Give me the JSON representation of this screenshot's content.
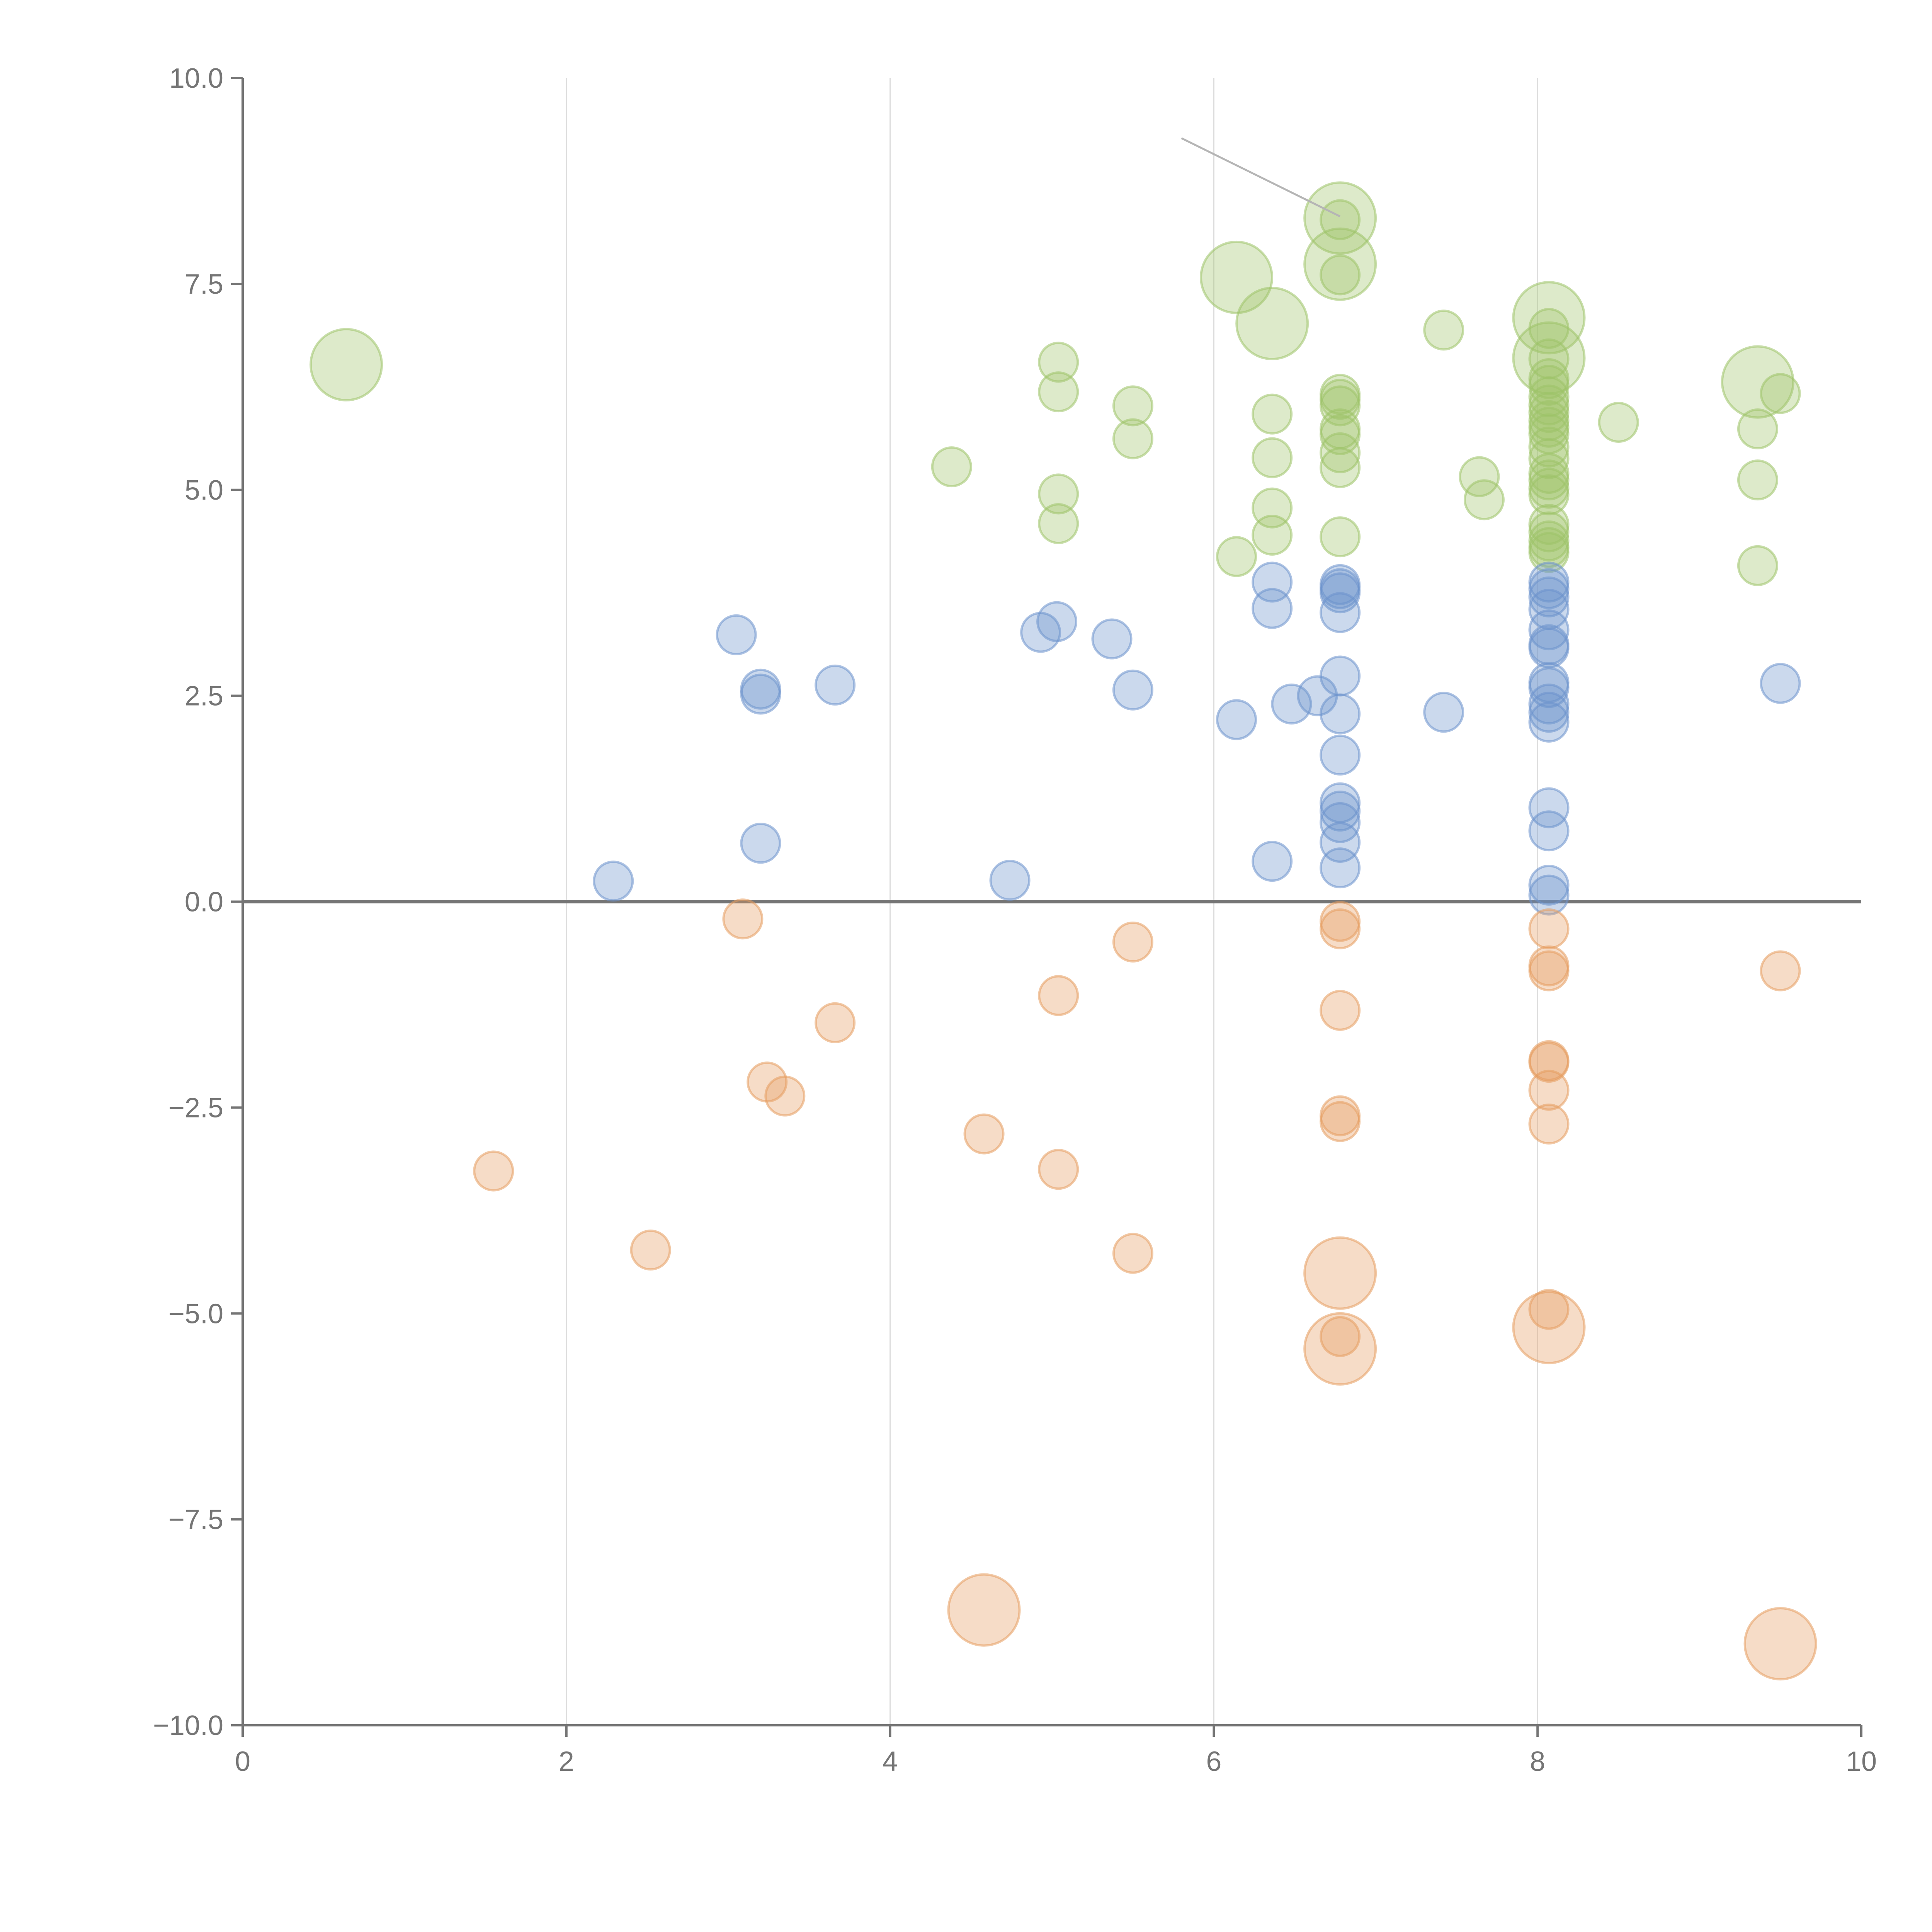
{
  "chart_data": {
    "type": "scatter",
    "title": "",
    "xlabel": "",
    "ylabel": "",
    "xlim": [
      0,
      10
    ],
    "ylim": [
      -10,
      10
    ],
    "grid": {
      "x": true,
      "y": false
    },
    "zero_line": true,
    "x_ticks": [
      0,
      2,
      4,
      6,
      8,
      10
    ],
    "x_tick_labels": [
      "0",
      "2",
      "4",
      "6",
      "8",
      "10"
    ],
    "y_ticks": [
      10,
      7.5,
      5,
      2.5,
      0,
      -2.5,
      -5,
      -7.5,
      -10
    ],
    "y_tick_labels": [
      "10.0",
      "7.5",
      "5.0",
      "2.5",
      "0.0",
      "−2.5",
      "−5.0",
      "−7.5",
      "−10.0"
    ],
    "colors": {
      "green": "#9dc267",
      "blue": "#6b92cc",
      "orange": "#e69c5e",
      "axis": "#757575",
      "grid": "#dddddd"
    },
    "series": [
      {
        "name": "green",
        "color": "#9dc267",
        "points": [
          [
            0.64,
            6.52,
            2
          ],
          [
            4.38,
            5.28,
            1
          ],
          [
            5.04,
            6.55,
            1
          ],
          [
            5.04,
            6.19,
            1
          ],
          [
            5.04,
            4.95,
            1
          ],
          [
            5.04,
            4.59,
            1
          ],
          [
            5.5,
            6.02,
            1
          ],
          [
            5.5,
            5.62,
            1
          ],
          [
            6.14,
            4.19,
            1
          ],
          [
            6.14,
            7.58,
            2
          ],
          [
            6.36,
            5.92,
            1
          ],
          [
            6.36,
            5.39,
            1
          ],
          [
            6.36,
            4.78,
            1
          ],
          [
            6.36,
            4.45,
            1
          ],
          [
            6.36,
            7.02,
            2
          ],
          [
            6.78,
            8.3,
            2
          ],
          [
            6.78,
            7.74,
            2
          ],
          [
            6.78,
            8.28,
            1
          ],
          [
            6.78,
            7.61,
            1
          ],
          [
            6.78,
            6.16,
            1
          ],
          [
            6.78,
            6.1,
            1
          ],
          [
            6.78,
            6.02,
            1
          ],
          [
            6.78,
            5.74,
            1
          ],
          [
            6.78,
            5.67,
            1
          ],
          [
            6.78,
            5.45,
            1
          ],
          [
            6.78,
            5.27,
            1
          ],
          [
            6.78,
            4.43,
            1
          ],
          [
            7.42,
            6.94,
            1
          ],
          [
            7.64,
            5.16,
            1
          ],
          [
            7.67,
            4.88,
            1
          ],
          [
            8.07,
            7.09,
            2
          ],
          [
            8.07,
            6.6,
            2
          ],
          [
            8.07,
            6.96,
            1
          ],
          [
            8.07,
            6.59,
            1
          ],
          [
            8.07,
            6.35,
            1
          ],
          [
            8.07,
            6.27,
            1
          ],
          [
            8.07,
            6.13,
            1
          ],
          [
            8.07,
            6.03,
            1
          ],
          [
            8.07,
            5.94,
            1
          ],
          [
            8.07,
            5.84,
            1
          ],
          [
            8.07,
            5.76,
            1
          ],
          [
            8.07,
            5.68,
            1
          ],
          [
            8.07,
            5.52,
            1
          ],
          [
            8.07,
            5.38,
            1
          ],
          [
            8.07,
            5.2,
            1
          ],
          [
            8.07,
            5.12,
            1
          ],
          [
            8.07,
            5.02,
            1
          ],
          [
            8.07,
            4.94,
            1
          ],
          [
            8.07,
            4.58,
            1
          ],
          [
            8.07,
            4.49,
            1
          ],
          [
            8.07,
            4.38,
            1
          ],
          [
            8.07,
            4.3,
            1
          ],
          [
            8.07,
            4.24,
            1
          ],
          [
            8.5,
            5.82,
            1
          ],
          [
            9.36,
            6.31,
            2
          ],
          [
            9.36,
            5.74,
            1
          ],
          [
            9.36,
            5.12,
            1
          ],
          [
            9.36,
            4.08,
            1
          ],
          [
            9.5,
            6.17,
            1
          ]
        ]
      },
      {
        "name": "blue",
        "color": "#6b92cc",
        "points": [
          [
            2.29,
            0.25,
            1
          ],
          [
            3.05,
            3.24,
            1
          ],
          [
            3.2,
            2.58,
            1
          ],
          [
            3.2,
            2.52,
            1
          ],
          [
            3.2,
            0.71,
            1
          ],
          [
            3.66,
            2.63,
            1
          ],
          [
            4.74,
            0.26,
            1
          ],
          [
            4.93,
            3.27,
            1
          ],
          [
            5.03,
            3.4,
            1
          ],
          [
            5.37,
            3.19,
            1
          ],
          [
            5.5,
            2.57,
            1
          ],
          [
            6.14,
            2.21,
            1
          ],
          [
            6.36,
            3.88,
            1
          ],
          [
            6.36,
            3.56,
            1
          ],
          [
            6.36,
            0.49,
            1
          ],
          [
            6.48,
            2.4,
            1
          ],
          [
            6.64,
            2.5,
            1
          ],
          [
            6.78,
            3.85,
            1
          ],
          [
            6.78,
            3.8,
            1
          ],
          [
            6.78,
            3.75,
            1
          ],
          [
            6.78,
            3.51,
            1
          ],
          [
            6.78,
            2.74,
            1
          ],
          [
            6.78,
            2.28,
            1
          ],
          [
            6.78,
            1.78,
            1
          ],
          [
            6.78,
            1.2,
            1
          ],
          [
            6.78,
            1.1,
            1
          ],
          [
            6.78,
            0.96,
            1
          ],
          [
            6.78,
            0.72,
            1
          ],
          [
            6.78,
            0.41,
            1
          ],
          [
            7.42,
            2.3,
            1
          ],
          [
            8.07,
            3.88,
            1
          ],
          [
            8.07,
            3.8,
            1
          ],
          [
            8.07,
            3.7,
            1
          ],
          [
            8.07,
            3.55,
            1
          ],
          [
            8.07,
            3.3,
            1
          ],
          [
            8.07,
            3.12,
            1
          ],
          [
            8.07,
            3.08,
            1
          ],
          [
            8.07,
            2.66,
            1
          ],
          [
            8.07,
            2.6,
            1
          ],
          [
            8.07,
            2.4,
            1
          ],
          [
            8.07,
            2.3,
            1
          ],
          [
            8.07,
            2.18,
            1
          ],
          [
            8.07,
            1.14,
            1
          ],
          [
            8.07,
            0.86,
            1
          ],
          [
            8.07,
            0.2,
            1
          ],
          [
            8.07,
            0.08,
            1
          ],
          [
            9.5,
            2.65,
            1
          ]
        ]
      },
      {
        "name": "orange",
        "color": "#e69c5e",
        "points": [
          [
            1.55,
            -3.27,
            1
          ],
          [
            2.52,
            -4.23,
            1
          ],
          [
            3.09,
            -0.21,
            1
          ],
          [
            3.24,
            -2.19,
            1
          ],
          [
            3.35,
            -2.36,
            1
          ],
          [
            3.66,
            -1.47,
            1
          ],
          [
            4.58,
            -2.82,
            1
          ],
          [
            4.58,
            -8.6,
            2
          ],
          [
            5.04,
            -1.14,
            1
          ],
          [
            5.04,
            -3.25,
            1
          ],
          [
            5.5,
            -0.49,
            1
          ],
          [
            5.5,
            -4.27,
            1
          ],
          [
            6.78,
            -0.24,
            1
          ],
          [
            6.78,
            -0.33,
            1
          ],
          [
            6.78,
            -1.32,
            1
          ],
          [
            6.78,
            -2.6,
            1
          ],
          [
            6.78,
            -2.67,
            1
          ],
          [
            6.78,
            -4.51,
            2
          ],
          [
            6.78,
            -5.43,
            2
          ],
          [
            6.78,
            -5.28,
            1
          ],
          [
            8.07,
            -0.33,
            1
          ],
          [
            8.07,
            -0.78,
            1
          ],
          [
            8.07,
            -0.84,
            1
          ],
          [
            8.07,
            -1.93,
            1
          ],
          [
            8.07,
            -1.95,
            1
          ],
          [
            8.07,
            -2.29,
            1
          ],
          [
            8.07,
            -2.7,
            1
          ],
          [
            8.07,
            -4.95,
            1
          ],
          [
            8.07,
            -5.17,
            2
          ],
          [
            9.5,
            -0.84,
            1
          ],
          [
            9.5,
            -9.01,
            2
          ]
        ]
      }
    ],
    "annotations": [
      {
        "type": "leader",
        "x1": 5.8,
        "y1": 9.27,
        "x2": 6.78,
        "y2": 8.32
      }
    ]
  }
}
